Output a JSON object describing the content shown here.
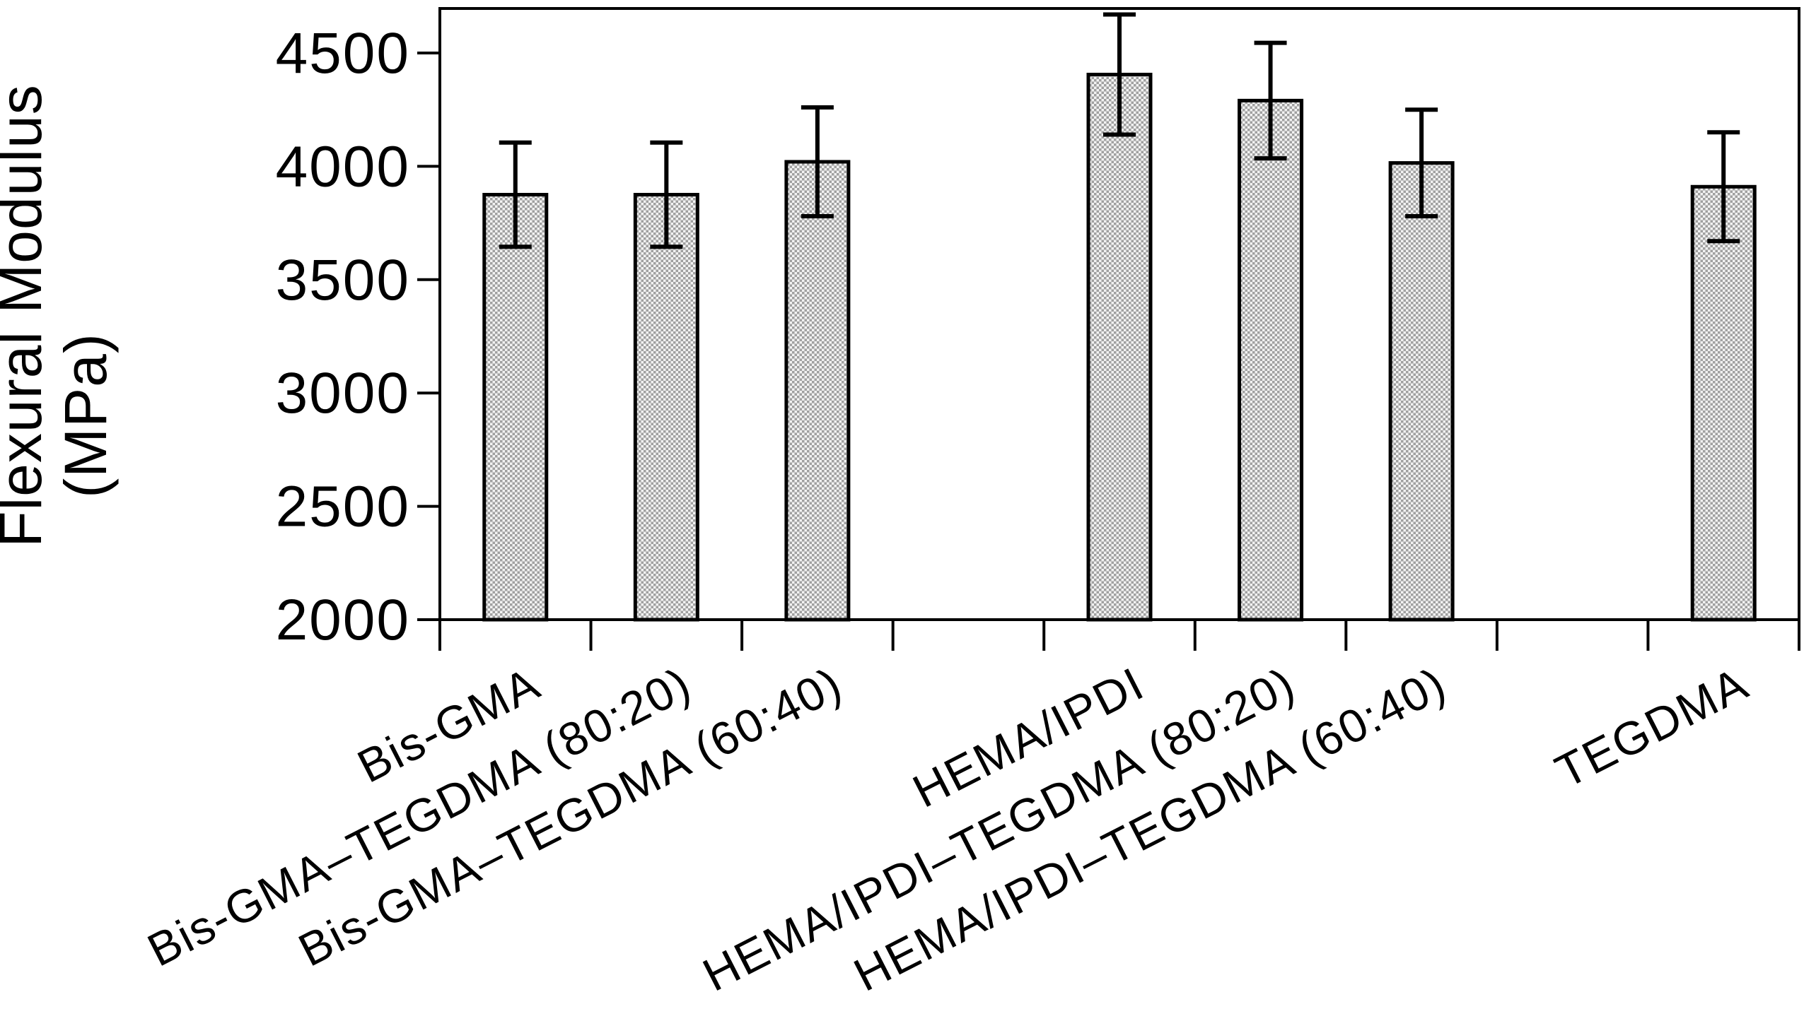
{
  "chart_data": {
    "type": "bar",
    "title": "",
    "ylabel_line1": "Flexural Modulus",
    "ylabel_line2": "(MPa)",
    "xlabel": "",
    "categories": [
      "Bis-GMA",
      "Bis-GMA–TEGDMA (80:20)",
      "Bis-GMA–TEGDMA (60:40)",
      "HEMA/IPDI",
      "HEMA/IPDI–TEGDMA  (80:20)",
      "HEMA/IPDI–TEGDMA (60:40)",
      "TEGDMA"
    ],
    "values": [
      3875,
      3875,
      4020,
      4405,
      4290,
      4015,
      3910
    ],
    "errors": [
      230,
      230,
      240,
      265,
      255,
      235,
      240
    ],
    "ylim": [
      2000,
      4500
    ],
    "ytick_step": 500,
    "yticks": [
      2000,
      2500,
      3000,
      3500,
      4000,
      4500
    ],
    "grid": false,
    "legend": "none",
    "bar_fill": "dotted-gray-pattern",
    "bar_border_color": "#000000",
    "axis_color": "#000000",
    "num_category_slots": 9,
    "bar_slot_indices": [
      0,
      1,
      2,
      4,
      5,
      6,
      8
    ],
    "x_label_rotation_deg": -27
  }
}
